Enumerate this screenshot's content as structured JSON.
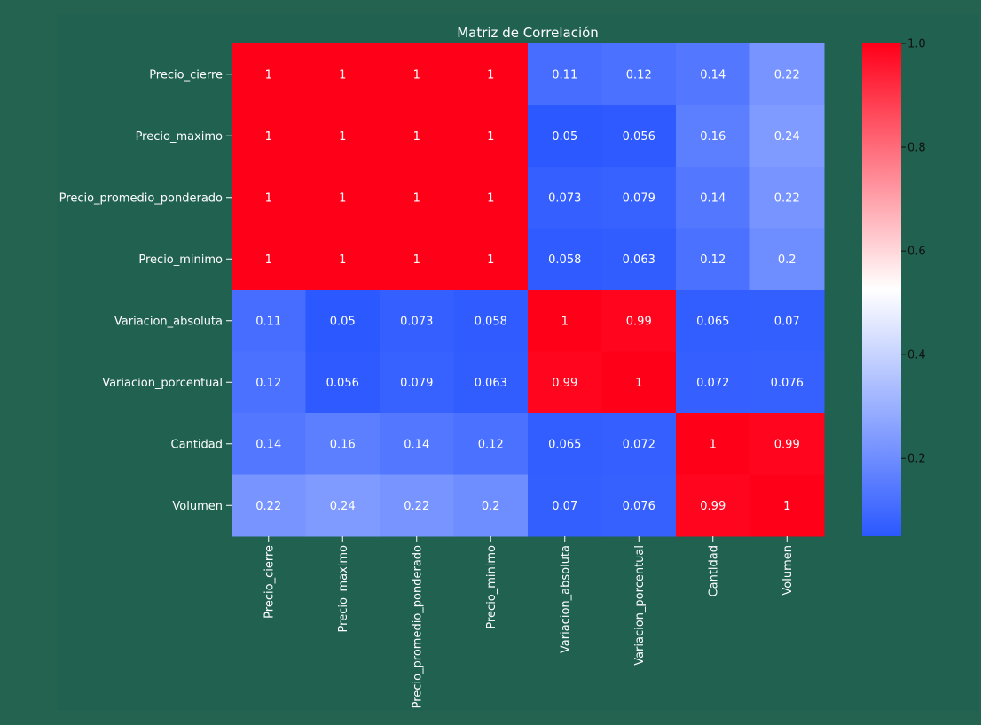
{
  "chart_data": {
    "type": "heatmap",
    "title": "Matriz de Correlación",
    "x_labels": [
      "Precio_cierre",
      "Precio_maximo",
      "Precio_promedio_ponderado",
      "Precio_minimo",
      "Variacion_absoluta",
      "Variacion_porcentual",
      "Cantidad",
      "Volumen"
    ],
    "y_labels": [
      "Precio_cierre",
      "Precio_maximo",
      "Precio_promedio_ponderado",
      "Precio_minimo",
      "Variacion_absoluta",
      "Variacion_porcentual",
      "Cantidad",
      "Volumen"
    ],
    "values": [
      [
        1,
        1,
        1,
        1,
        0.11,
        0.12,
        0.14,
        0.22
      ],
      [
        1,
        1,
        1,
        1,
        0.05,
        0.056,
        0.16,
        0.24
      ],
      [
        1,
        1,
        1,
        1,
        0.073,
        0.079,
        0.14,
        0.22
      ],
      [
        1,
        1,
        1,
        1,
        0.058,
        0.063,
        0.12,
        0.2
      ],
      [
        0.11,
        0.05,
        0.073,
        0.058,
        1,
        0.99,
        0.065,
        0.07
      ],
      [
        0.12,
        0.056,
        0.079,
        0.063,
        0.99,
        1,
        0.072,
        0.076
      ],
      [
        0.14,
        0.16,
        0.14,
        0.12,
        0.065,
        0.072,
        1,
        0.99
      ],
      [
        0.22,
        0.24,
        0.22,
        0.2,
        0.07,
        0.076,
        0.99,
        1
      ]
    ],
    "colorbar": {
      "min": 0.05,
      "max": 1.0,
      "ticks": [
        0.2,
        0.4,
        0.6,
        0.8,
        1.0
      ],
      "tick_labels": [
        "0.2",
        "0.4",
        "0.6",
        "0.8",
        "1.0"
      ]
    },
    "colormap": [
      "#2b58ff",
      "#ffffff",
      "#ff0019"
    ]
  }
}
